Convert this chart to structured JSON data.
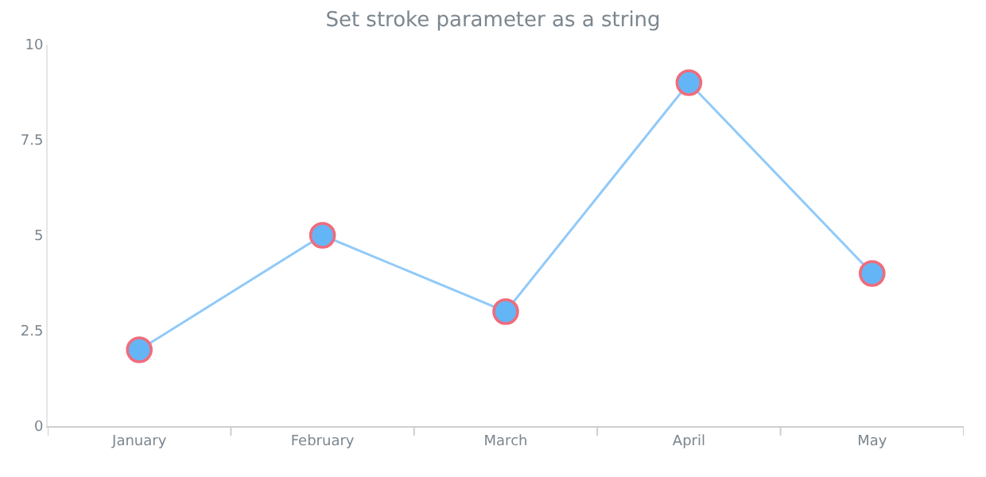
{
  "chart_data": {
    "type": "line",
    "title": "Set stroke parameter as a string",
    "categories": [
      "January",
      "February",
      "March",
      "April",
      "May"
    ],
    "series": [
      {
        "color": "#90caf9",
        "values": [
          2,
          5,
          3,
          9,
          4
        ]
      }
    ],
    "colors": [
      "#64b5f6",
      "#64b5f6",
      "#64b5f6",
      "#64b5f6",
      "#64b5f6"
    ],
    "marker": "circle",
    "line_style": "solid",
    "ylim": [
      0,
      10
    ],
    "yticks": [
      0,
      2.5,
      5,
      7.5,
      10
    ]
  }
}
